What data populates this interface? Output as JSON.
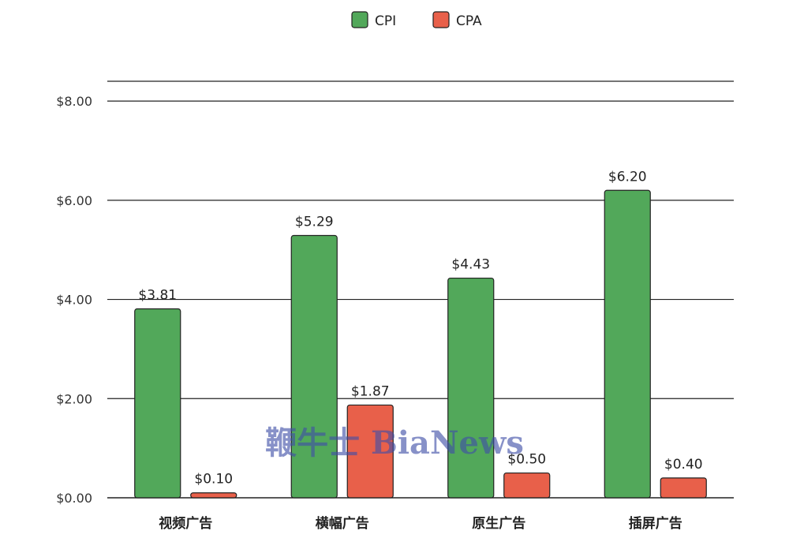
{
  "chart_data": {
    "type": "bar",
    "categories": [
      "视频广告",
      "横幅广告",
      "原生广告",
      "插屏广告"
    ],
    "series": [
      {
        "name": "CPI",
        "values": [
          3.81,
          5.29,
          4.43,
          6.2
        ],
        "color": "#52a85a"
      },
      {
        "name": "CPA",
        "values": [
          0.1,
          1.87,
          0.5,
          0.4
        ],
        "color": "#e8604a"
      }
    ],
    "data_labels": [
      [
        "$3.81",
        "$5.29",
        "$4.43",
        "$6.20"
      ],
      [
        "$0.10",
        "$1.87",
        "$0.50",
        "$0.40"
      ]
    ],
    "y_ticks": [
      0,
      2,
      4,
      6,
      8
    ],
    "y_tick_labels": [
      "$0.00",
      "$2.00",
      "$4.00",
      "$6.00",
      "$8.00"
    ],
    "ylim": [
      0,
      8.4
    ],
    "grid": true,
    "legend_position": "top-center",
    "title": "",
    "xlabel": "",
    "ylabel": ""
  },
  "watermark": {
    "text": "鞭牛士 BiaNews"
  }
}
